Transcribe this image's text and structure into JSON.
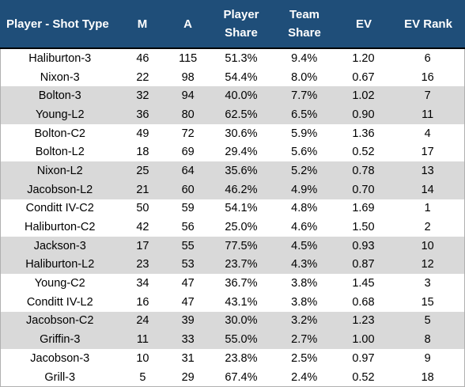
{
  "table": {
    "headers": [
      "Player - Shot Type",
      "M",
      "A",
      "Player Share",
      "Team Share",
      "EV",
      "EV Rank"
    ],
    "header_lines": [
      [
        "Player - Shot Type"
      ],
      [
        "M"
      ],
      [
        "A"
      ],
      [
        "Player",
        "Share"
      ],
      [
        "Team",
        "Share"
      ],
      [
        "EV"
      ],
      [
        "EV Rank"
      ]
    ],
    "rows": [
      [
        "Haliburton-3",
        "46",
        "115",
        "51.3%",
        "9.4%",
        "1.20",
        "6"
      ],
      [
        "Nixon-3",
        "22",
        "98",
        "54.4%",
        "8.0%",
        "0.67",
        "16"
      ],
      [
        "Bolton-3",
        "32",
        "94",
        "40.0%",
        "7.7%",
        "1.02",
        "7"
      ],
      [
        "Young-L2",
        "36",
        "80",
        "62.5%",
        "6.5%",
        "0.90",
        "11"
      ],
      [
        "Bolton-C2",
        "49",
        "72",
        "30.6%",
        "5.9%",
        "1.36",
        "4"
      ],
      [
        "Bolton-L2",
        "18",
        "69",
        "29.4%",
        "5.6%",
        "0.52",
        "17"
      ],
      [
        "Nixon-L2",
        "25",
        "64",
        "35.6%",
        "5.2%",
        "0.78",
        "13"
      ],
      [
        "Jacobson-L2",
        "21",
        "60",
        "46.2%",
        "4.9%",
        "0.70",
        "14"
      ],
      [
        "Conditt IV-C2",
        "50",
        "59",
        "54.1%",
        "4.8%",
        "1.69",
        "1"
      ],
      [
        "Haliburton-C2",
        "42",
        "56",
        "25.0%",
        "4.6%",
        "1.50",
        "2"
      ],
      [
        "Jackson-3",
        "17",
        "55",
        "77.5%",
        "4.5%",
        "0.93",
        "10"
      ],
      [
        "Haliburton-L2",
        "23",
        "53",
        "23.7%",
        "4.3%",
        "0.87",
        "12"
      ],
      [
        "Young-C2",
        "34",
        "47",
        "36.7%",
        "3.8%",
        "1.45",
        "3"
      ],
      [
        "Conditt IV-L2",
        "16",
        "47",
        "43.1%",
        "3.8%",
        "0.68",
        "15"
      ],
      [
        "Jacobson-C2",
        "24",
        "39",
        "30.0%",
        "3.2%",
        "1.23",
        "5"
      ],
      [
        "Griffin-3",
        "11",
        "33",
        "55.0%",
        "2.7%",
        "1.00",
        "8"
      ],
      [
        "Jacobson-3",
        "10",
        "31",
        "23.8%",
        "2.5%",
        "0.97",
        "9"
      ],
      [
        "Grill-3",
        "5",
        "29",
        "67.4%",
        "2.4%",
        "0.52",
        "18"
      ]
    ]
  },
  "colors": {
    "header_bg": "#1f4e79",
    "header_text": "#ffffff",
    "band_shade": "#d9d9d9",
    "band_plain": "#ffffff"
  }
}
